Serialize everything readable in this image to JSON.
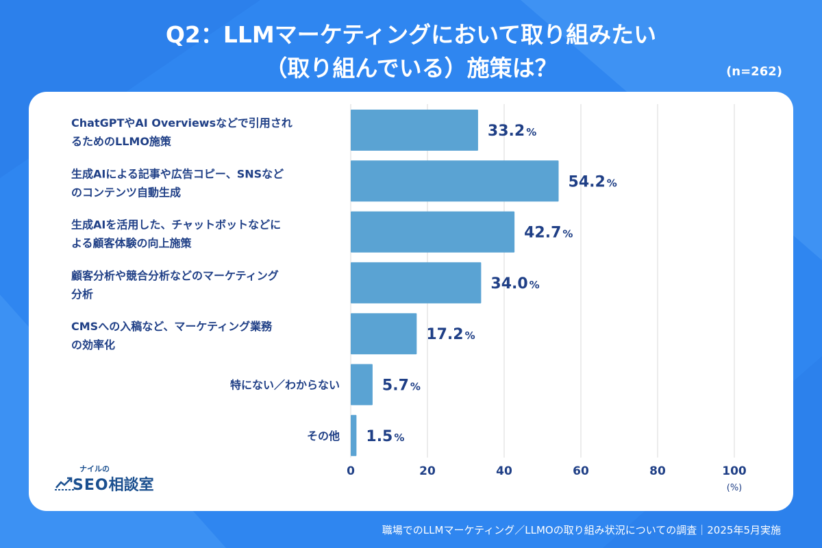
{
  "header": {
    "title_line1": "Q2：LLMマーケティングにおいて取り組みたい",
    "title_line2": "（取り組んでいる）施策は？",
    "sample_size": "(n=262)"
  },
  "footer": {
    "source": "職場でのLLMマーケティング／LLMOの取り組み状況についての調査｜2025年5月実施"
  },
  "logo": {
    "sub": "ナイルの",
    "seo": "SEO",
    "main": "相談室"
  },
  "colors": {
    "background": "#2f86f0",
    "bar": "#5aa3d3",
    "label_text": "#1f3f86",
    "value_text": "#1f3f86",
    "grid": "#d9d9d9"
  },
  "chart_data": {
    "type": "bar",
    "orientation": "horizontal",
    "categories": [
      [
        "ChatGPTやAI Overviewsなどで引用され",
        "るためのLLMO施策"
      ],
      [
        "生成AIによる記事や広告コピー、SNSなど",
        "のコンテンツ自動生成"
      ],
      [
        "生成AIを活用した、チャットボットなどに",
        "よる顧客体験の向上施策"
      ],
      [
        "顧客分析や競合分析などのマーケティング",
        "分析"
      ],
      [
        "CMSへの入稿など、マーケティング業務",
        "の効率化"
      ],
      [
        "特にない／わからない"
      ],
      [
        "その他"
      ]
    ],
    "values": [
      33.2,
      54.2,
      42.7,
      34.0,
      17.2,
      5.7,
      1.5
    ],
    "value_labels": [
      "33.2",
      "54.2",
      "42.7",
      "34.0",
      "17.2",
      "5.7",
      "1.5"
    ],
    "value_unit": "%",
    "xlim": [
      0,
      100
    ],
    "xticks": [
      0,
      20,
      40,
      60,
      80,
      100
    ],
    "xtick_labels": [
      "0",
      "20",
      "40",
      "60",
      "80",
      "100"
    ],
    "xlabel": "(%)",
    "grid": true
  }
}
